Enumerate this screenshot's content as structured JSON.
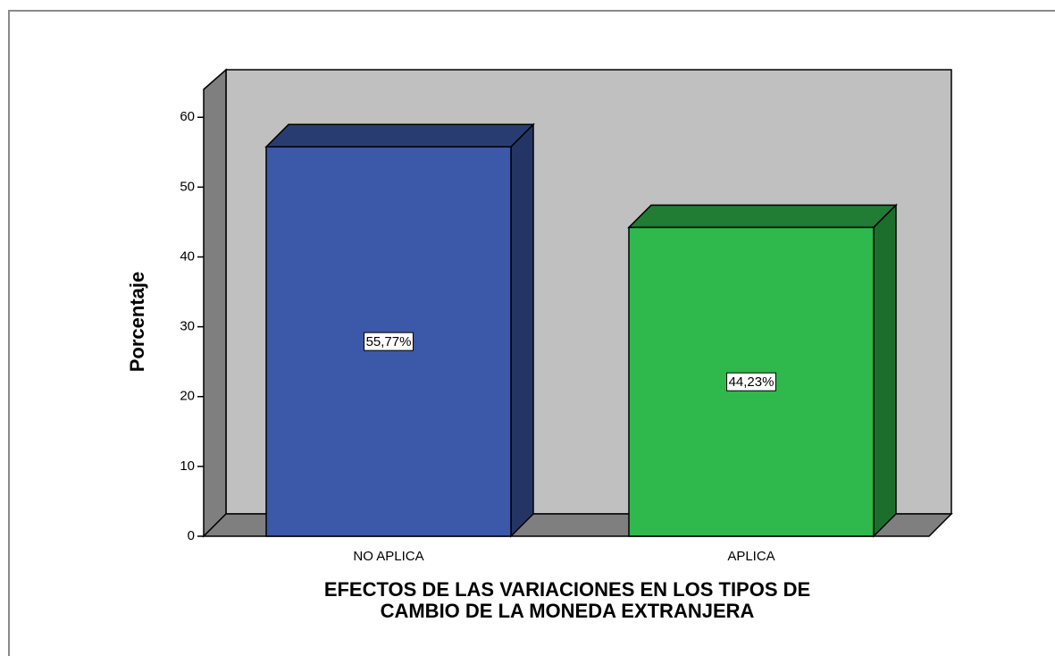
{
  "chart_data": {
    "type": "bar3d",
    "ylabel": "Porcentaje",
    "xlabel": [
      "EFECTOS DE LAS VARIACIONES EN LOS TIPOS DE",
      "CAMBIO DE LA MONEDA EXTRANJERA"
    ],
    "categories": [
      "NO APLICA",
      "APLICA"
    ],
    "values": [
      55.77,
      44.23
    ],
    "value_labels": [
      "55,77%",
      "44,23%"
    ],
    "colors": [
      "#3c58a8",
      "#2fb84b"
    ],
    "ylim": [
      0,
      64
    ],
    "yticks": [
      0,
      10,
      20,
      30,
      40,
      50,
      60
    ]
  }
}
